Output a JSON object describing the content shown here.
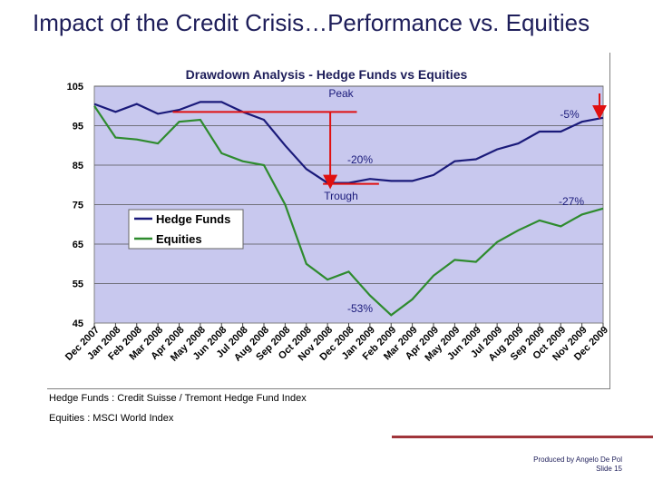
{
  "slide": {
    "title": "Impact of the Credit Crisis…Performance vs. Equities",
    "source_hedge": "Hedge Funds : Credit Suisse / Tremont Hedge Fund Index",
    "source_equities": "Equities : MSCI World Index",
    "footer_author": "Produced by Angelo De Pol",
    "footer_slide": "Slide 15"
  },
  "chart_data": {
    "type": "line",
    "title": "Drawdown Analysis - Hedge Funds vs Equities",
    "categories": [
      "Dec 2007",
      "Jan 2008",
      "Feb 2008",
      "Mar 2008",
      "Apr 2008",
      "May 2008",
      "Jun 2008",
      "Jul 2008",
      "Aug 2008",
      "Sep 2008",
      "Oct 2008",
      "Nov 2008",
      "Dec 2008",
      "Jan 2009",
      "Feb 2009",
      "Mar 2009",
      "Apr 2009",
      "May 2009",
      "Jun 2009",
      "Jul 2009",
      "Aug 2009",
      "Sep 2009",
      "Oct 2009",
      "Nov 2009",
      "Dec 2009"
    ],
    "ylim": [
      45,
      105
    ],
    "yticks": [
      45,
      55,
      65,
      75,
      85,
      95,
      105
    ],
    "series": [
      {
        "name": "Hedge Funds",
        "color": "#1a1a7a",
        "values": [
          100.5,
          98.5,
          100.5,
          98,
          99,
          101,
          101,
          98.5,
          96.5,
          90,
          84,
          80.5,
          80.5,
          81.5,
          81,
          81,
          82.5,
          86,
          86.5,
          89,
          90.5,
          93.5,
          93.5,
          96,
          97
        ]
      },
      {
        "name": "Equities",
        "color": "#2e8b2e",
        "values": [
          100,
          92,
          91.5,
          90.5,
          96,
          96.5,
          88,
          86,
          85,
          75,
          60,
          56,
          58,
          52,
          47,
          51,
          57,
          61,
          60.5,
          65.5,
          68.5,
          71,
          69.5,
          72.5,
          74
        ]
      }
    ],
    "legend": {
      "position": "left-middle",
      "entries": [
        "Hedge Funds",
        "Equities"
      ]
    },
    "annotations": [
      {
        "text": "Peak",
        "color": "#1a1a7a"
      },
      {
        "text": "Trough",
        "color": "#1a1a7a"
      },
      {
        "text": "-5%",
        "color": "#1a1a7a"
      },
      {
        "text": "-20%",
        "color": "#1a1a7a"
      },
      {
        "text": "-27%",
        "color": "#1a1a7a"
      },
      {
        "text": "-53%",
        "color": "#1a1a7a"
      }
    ],
    "plot_background": "#c8c8ee",
    "grid": true
  }
}
